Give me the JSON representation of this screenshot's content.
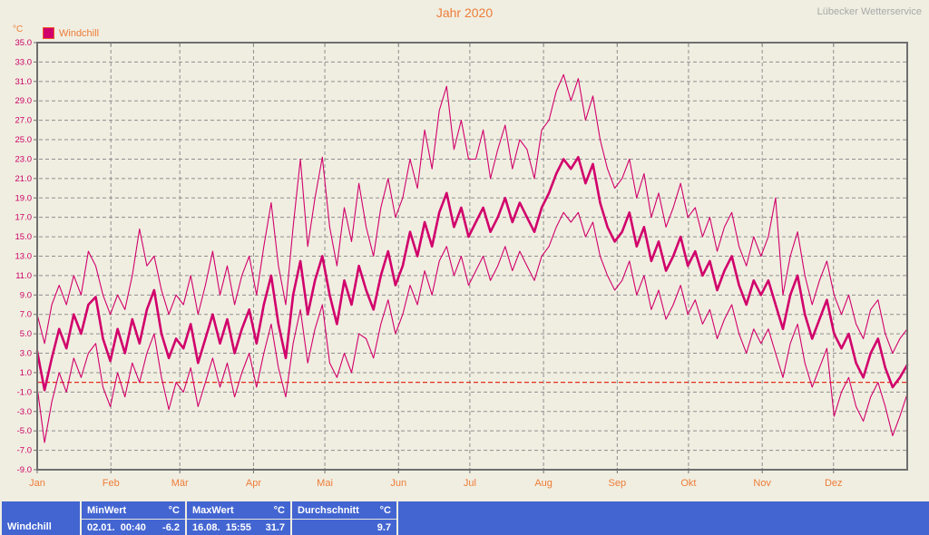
{
  "header": {
    "title": "Jahr 2020",
    "service": "Lübecker Wetterservice"
  },
  "legend": {
    "label": "Windchill"
  },
  "colors": {
    "background": "#f0eee1",
    "accent_orange": "#ee7c38",
    "line_magenta": "#d1006b",
    "axis_text_magenta": "#cc0066",
    "grid_gray": "#8f8f8f",
    "frame_gray": "#6f6f6f",
    "reference_red": "#e0301e",
    "table_blue": "#4365d2",
    "service_gray": "#a9a9a9"
  },
  "chart_data": {
    "type": "line",
    "title": "Jahr 2020",
    "ylabel": "°C",
    "ylim": [
      -9,
      35
    ],
    "ytick_step": 2,
    "ytick_decimals": 1,
    "grid": true,
    "reference_line": 0,
    "x_labels": [
      "Jan",
      "Feb",
      "Mär",
      "Apr",
      "Mai",
      "Jun",
      "Jul",
      "Aug",
      "Sep",
      "Okt",
      "Nov",
      "Dez"
    ],
    "legend_position": "top-left",
    "series": [
      {
        "name": "windchill-daily-min",
        "thick": false,
        "values": [
          -0.5,
          -6.2,
          -2.0,
          1.0,
          -1.0,
          2.5,
          0.5,
          3.0,
          4.0,
          -0.5,
          -2.5,
          1.0,
          -1.5,
          2.0,
          0.0,
          3.0,
          5.0,
          0.5,
          -2.8,
          0.0,
          -1.0,
          1.5,
          -2.5,
          0.0,
          2.5,
          -0.5,
          2.0,
          -1.5,
          1.0,
          3.0,
          -0.5,
          3.0,
          6.0,
          1.5,
          -1.5,
          4.0,
          7.5,
          2.0,
          5.5,
          8.0,
          2.0,
          0.5,
          3.0,
          1.0,
          5.0,
          4.5,
          2.5,
          6.0,
          8.5,
          5.0,
          7.0,
          10.0,
          8.0,
          11.5,
          9.0,
          12.5,
          14.0,
          11.0,
          13.0,
          10.0,
          11.5,
          13.0,
          10.5,
          12.0,
          14.0,
          11.5,
          13.5,
          12.0,
          10.5,
          13.0,
          14.0,
          16.0,
          17.5,
          16.5,
          17.5,
          15.0,
          16.5,
          13.0,
          11.0,
          9.5,
          10.5,
          12.5,
          9.0,
          11.0,
          7.5,
          9.5,
          6.5,
          8.0,
          10.0,
          7.0,
          8.5,
          6.0,
          7.5,
          4.5,
          6.5,
          8.0,
          5.0,
          3.0,
          5.5,
          4.0,
          5.5,
          3.0,
          0.5,
          4.0,
          6.0,
          2.0,
          -0.5,
          1.5,
          3.5,
          -3.5,
          -1.0,
          0.5,
          -2.5,
          -4.0,
          -1.5,
          0.0,
          -2.5,
          -5.5,
          -3.5,
          -1.2
        ]
      },
      {
        "name": "windchill-daily-mean",
        "thick": true,
        "values": [
          3.2,
          -0.8,
          2.5,
          5.5,
          3.5,
          7.0,
          5.0,
          8.0,
          8.8,
          4.5,
          2.2,
          5.5,
          3.0,
          6.5,
          4.0,
          7.5,
          9.5,
          5.0,
          2.5,
          4.5,
          3.5,
          6.0,
          2.0,
          4.5,
          7.0,
          4.0,
          6.5,
          3.0,
          5.5,
          7.5,
          4.0,
          8.0,
          11.0,
          6.0,
          2.5,
          9.0,
          12.5,
          7.0,
          10.5,
          13.0,
          9.0,
          6.0,
          10.5,
          8.0,
          12.0,
          9.5,
          7.5,
          11.0,
          13.5,
          10.0,
          12.0,
          15.5,
          13.0,
          16.5,
          14.0,
          17.5,
          19.5,
          16.0,
          18.0,
          15.0,
          16.5,
          18.0,
          15.5,
          17.0,
          19.0,
          16.5,
          18.5,
          17.0,
          15.5,
          18.0,
          19.5,
          21.5,
          23.0,
          22.0,
          23.2,
          20.5,
          22.5,
          18.5,
          16.0,
          14.5,
          15.5,
          17.5,
          14.0,
          16.0,
          12.5,
          14.5,
          11.5,
          13.0,
          15.0,
          12.0,
          13.5,
          11.0,
          12.5,
          9.5,
          11.5,
          13.0,
          10.0,
          8.0,
          10.5,
          9.0,
          10.5,
          8.0,
          5.5,
          9.0,
          11.0,
          7.0,
          4.5,
          6.5,
          8.5,
          5.0,
          3.5,
          5.0,
          2.0,
          0.5,
          3.0,
          4.5,
          1.5,
          -0.5,
          0.5,
          1.8
        ]
      },
      {
        "name": "windchill-daily-max",
        "thick": false,
        "values": [
          7.0,
          4.0,
          8.0,
          10.0,
          8.0,
          11.0,
          9.0,
          13.5,
          12.0,
          9.0,
          7.0,
          9.0,
          7.5,
          11.0,
          15.8,
          12.0,
          13.0,
          9.5,
          7.0,
          9.0,
          8.0,
          11.0,
          7.0,
          10.0,
          13.5,
          9.0,
          12.0,
          8.0,
          11.0,
          13.0,
          9.0,
          14.0,
          18.5,
          12.0,
          8.0,
          16.0,
          23.0,
          14.0,
          19.0,
          23.2,
          16.0,
          12.0,
          18.0,
          14.5,
          20.5,
          16.0,
          13.0,
          18.0,
          21.0,
          17.0,
          19.0,
          23.0,
          20.0,
          26.0,
          22.0,
          28.0,
          30.5,
          24.0,
          27.0,
          23.0,
          23.0,
          26.0,
          21.0,
          24.0,
          26.5,
          22.0,
          25.0,
          24.0,
          21.0,
          26.0,
          27.0,
          30.0,
          31.7,
          29.0,
          31.3,
          27.0,
          29.5,
          25.0,
          22.0,
          20.0,
          21.0,
          23.0,
          19.0,
          21.5,
          17.0,
          19.5,
          16.0,
          18.0,
          20.5,
          17.0,
          18.0,
          15.0,
          17.0,
          13.5,
          16.0,
          17.5,
          14.0,
          12.0,
          15.0,
          13.0,
          15.0,
          19.0,
          9.0,
          13.0,
          15.5,
          11.0,
          8.0,
          10.5,
          12.5,
          9.0,
          7.0,
          9.0,
          6.0,
          4.5,
          7.5,
          8.5,
          5.0,
          3.0,
          4.5,
          5.5
        ]
      }
    ]
  },
  "summary": {
    "row_label": "Windchill",
    "min": {
      "label": "MinWert",
      "unit": "°C",
      "datetime": "02.01.  00:40",
      "value": "-6.2"
    },
    "max": {
      "label": "MaxWert",
      "unit": "°C",
      "datetime": "16.08.  15:55",
      "value": "31.7"
    },
    "avg": {
      "label": "Durchschnitt",
      "unit": "°C",
      "value": "9.7"
    }
  }
}
